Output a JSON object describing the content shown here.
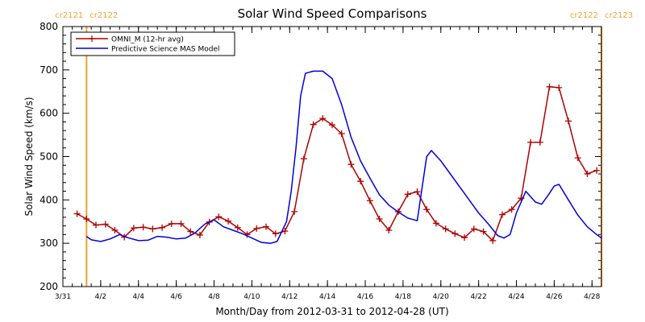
{
  "chart_data": {
    "type": "line",
    "title": "Solar Wind Speed Comparisons",
    "xlabel": "Month/Day from 2012-03-31 to 2012-04-28 (UT)",
    "ylabel": "Solar Wind Speed (km/s)",
    "xlim": [
      "2012-03-31",
      "2012-04-28 12:00"
    ],
    "ylim": [
      200,
      800
    ],
    "yticks": [
      200,
      300,
      400,
      500,
      600,
      700,
      800
    ],
    "xticks": [
      {
        "date": "2012-03-31",
        "label": "3/31"
      },
      {
        "date": "2012-04-02",
        "label": "4/2"
      },
      {
        "date": "2012-04-04",
        "label": "4/4"
      },
      {
        "date": "2012-04-06",
        "label": "4/6"
      },
      {
        "date": "2012-04-08",
        "label": "4/8"
      },
      {
        "date": "2012-04-10",
        "label": "4/10"
      },
      {
        "date": "2012-04-12",
        "label": "4/12"
      },
      {
        "date": "2012-04-14",
        "label": "4/14"
      },
      {
        "date": "2012-04-16",
        "label": "4/16"
      },
      {
        "date": "2012-04-18",
        "label": "4/18"
      },
      {
        "date": "2012-04-20",
        "label": "4/20"
      },
      {
        "date": "2012-04-22",
        "label": "4/22"
      },
      {
        "date": "2012-04-24",
        "label": "4/24"
      },
      {
        "date": "2012-04-26",
        "label": "4/26"
      },
      {
        "date": "2012-04-28",
        "label": "4/28"
      }
    ],
    "legend_position": "top-left",
    "carrington_markers": [
      {
        "date": "2012-04-01 06:00",
        "label_left": "cr2121",
        "label_right": "cr2122",
        "color": "#f5a030"
      },
      {
        "date": "2012-04-28 12:00",
        "label_left": "cr2122",
        "label_right": "cr2123",
        "color": "#f5a030"
      }
    ],
    "series": [
      {
        "name": "OMNI_M (12-hr avg)",
        "color": "#b00000",
        "marker": "plus",
        "points": [
          [
            "2012-03-31 18:00",
            368
          ],
          [
            "2012-04-01 06:00",
            356
          ],
          [
            "2012-04-01 18:00",
            342
          ],
          [
            "2012-04-02 06:00",
            344
          ],
          [
            "2012-04-02 18:00",
            330
          ],
          [
            "2012-04-03 06:00",
            314
          ],
          [
            "2012-04-03 18:00",
            335
          ],
          [
            "2012-04-04 06:00",
            337
          ],
          [
            "2012-04-04 18:00",
            333
          ],
          [
            "2012-04-05 06:00",
            336
          ],
          [
            "2012-04-05 18:00",
            345
          ],
          [
            "2012-04-06 06:00",
            345
          ],
          [
            "2012-04-06 18:00",
            327
          ],
          [
            "2012-04-07 06:00",
            319
          ],
          [
            "2012-04-07 18:00",
            349
          ],
          [
            "2012-04-08 06:00",
            361
          ],
          [
            "2012-04-08 18:00",
            351
          ],
          [
            "2012-04-09 06:00",
            336
          ],
          [
            "2012-04-09 18:00",
            320
          ],
          [
            "2012-04-10 06:00",
            334
          ],
          [
            "2012-04-10 18:00",
            338
          ],
          [
            "2012-04-11 06:00",
            322
          ],
          [
            "2012-04-11 18:00",
            328
          ],
          [
            "2012-04-12 06:00",
            373
          ],
          [
            "2012-04-12 18:00",
            495
          ],
          [
            "2012-04-13 06:00",
            574
          ],
          [
            "2012-04-13 18:00",
            588
          ],
          [
            "2012-04-14 06:00",
            573
          ],
          [
            "2012-04-14 18:00",
            553
          ],
          [
            "2012-04-15 06:00",
            482
          ],
          [
            "2012-04-15 18:00",
            443
          ],
          [
            "2012-04-16 06:00",
            398
          ],
          [
            "2012-04-16 18:00",
            356
          ],
          [
            "2012-04-17 06:00",
            330
          ],
          [
            "2012-04-17 18:00",
            373
          ],
          [
            "2012-04-18 06:00",
            413
          ],
          [
            "2012-04-18 18:00",
            419
          ],
          [
            "2012-04-19 06:00",
            378
          ],
          [
            "2012-04-19 18:00",
            346
          ],
          [
            "2012-04-20 06:00",
            333
          ],
          [
            "2012-04-20 18:00",
            322
          ],
          [
            "2012-04-21 06:00",
            313
          ],
          [
            "2012-04-21 18:00",
            333
          ],
          [
            "2012-04-22 06:00",
            327
          ],
          [
            "2012-04-22 18:00",
            306
          ],
          [
            "2012-04-23 06:00",
            366
          ],
          [
            "2012-04-23 18:00",
            378
          ],
          [
            "2012-04-24 06:00",
            404
          ],
          [
            "2012-04-24 18:00",
            533
          ],
          [
            "2012-04-25 06:00",
            533
          ],
          [
            "2012-04-25 18:00",
            661
          ],
          [
            "2012-04-26 06:00",
            659
          ],
          [
            "2012-04-26 18:00",
            582
          ],
          [
            "2012-04-27 06:00",
            497
          ],
          [
            "2012-04-27 18:00",
            460
          ],
          [
            "2012-04-28 06:00",
            468
          ]
        ]
      },
      {
        "name": "Predictive Science MAS Model",
        "color": "#0000dd",
        "marker": "none",
        "points": [
          [
            "2012-04-01 06:00",
            316
          ],
          [
            "2012-04-01 12:00",
            308
          ],
          [
            "2012-04-02 00:00",
            304
          ],
          [
            "2012-04-02 12:00",
            310
          ],
          [
            "2012-04-03 00:00",
            320
          ],
          [
            "2012-04-03 12:00",
            312
          ],
          [
            "2012-04-04 00:00",
            306
          ],
          [
            "2012-04-04 12:00",
            307
          ],
          [
            "2012-04-05 00:00",
            316
          ],
          [
            "2012-04-05 12:00",
            314
          ],
          [
            "2012-04-06 00:00",
            310
          ],
          [
            "2012-04-06 12:00",
            312
          ],
          [
            "2012-04-07 00:00",
            324
          ],
          [
            "2012-04-07 12:00",
            344
          ],
          [
            "2012-04-08 00:00",
            354
          ],
          [
            "2012-04-08 12:00",
            338
          ],
          [
            "2012-04-09 00:00",
            330
          ],
          [
            "2012-04-09 12:00",
            322
          ],
          [
            "2012-04-10 00:00",
            312
          ],
          [
            "2012-04-10 12:00",
            302
          ],
          [
            "2012-04-11 00:00",
            300
          ],
          [
            "2012-04-11 08:00",
            304
          ],
          [
            "2012-04-11 20:00",
            350
          ],
          [
            "2012-04-12 02:00",
            420
          ],
          [
            "2012-04-12 08:00",
            520
          ],
          [
            "2012-04-12 14:00",
            640
          ],
          [
            "2012-04-12 20:00",
            692
          ],
          [
            "2012-04-13 06:00",
            697
          ],
          [
            "2012-04-13 18:00",
            697
          ],
          [
            "2012-04-14 06:00",
            680
          ],
          [
            "2012-04-14 18:00",
            620
          ],
          [
            "2012-04-15 06:00",
            545
          ],
          [
            "2012-04-15 18:00",
            490
          ],
          [
            "2012-04-16 06:00",
            450
          ],
          [
            "2012-04-16 18:00",
            412
          ],
          [
            "2012-04-17 06:00",
            388
          ],
          [
            "2012-04-17 18:00",
            372
          ],
          [
            "2012-04-18 06:00",
            358
          ],
          [
            "2012-04-18 18:00",
            352
          ],
          [
            "2012-04-19 06:00",
            500
          ],
          [
            "2012-04-19 12:00",
            514
          ],
          [
            "2012-04-20 00:00",
            490
          ],
          [
            "2012-04-20 12:00",
            460
          ],
          [
            "2012-04-21 00:00",
            430
          ],
          [
            "2012-04-21 12:00",
            400
          ],
          [
            "2012-04-22 00:00",
            370
          ],
          [
            "2012-04-22 12:00",
            345
          ],
          [
            "2012-04-23 00:00",
            318
          ],
          [
            "2012-04-23 08:00",
            312
          ],
          [
            "2012-04-23 16:00",
            320
          ],
          [
            "2012-04-24 00:00",
            370
          ],
          [
            "2012-04-24 12:00",
            420
          ],
          [
            "2012-04-25 00:00",
            395
          ],
          [
            "2012-04-25 08:00",
            390
          ],
          [
            "2012-04-25 16:00",
            410
          ],
          [
            "2012-04-26 00:00",
            432
          ],
          [
            "2012-04-26 06:00",
            436
          ],
          [
            "2012-04-26 18:00",
            400
          ],
          [
            "2012-04-27 06:00",
            365
          ],
          [
            "2012-04-27 18:00",
            338
          ],
          [
            "2012-04-28 06:00",
            320
          ],
          [
            "2012-04-28 12:00",
            312
          ]
        ]
      }
    ]
  }
}
